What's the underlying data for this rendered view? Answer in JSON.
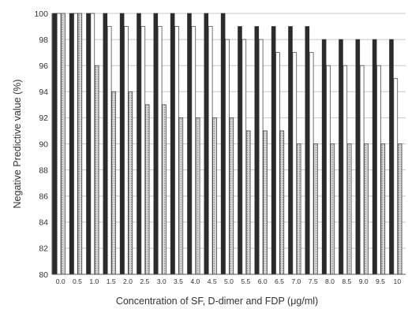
{
  "chart_data": {
    "type": "bar",
    "title": "",
    "xlabel": "Concentration of SF, D-dimer and FDP (μg/ml)",
    "ylabel": "Negative Predictive value (%)",
    "ylim": [
      80,
      100
    ],
    "yticks": [
      "80",
      "82",
      "84",
      "86",
      "88",
      "90",
      "92",
      "94",
      "96",
      "98",
      "100"
    ],
    "grid": true,
    "legend": "none",
    "categories": [
      "0.0",
      "0.5",
      "1.0",
      "1.5",
      "2.0",
      "2.5",
      "3.0",
      "3.5",
      "4.0",
      "4.5",
      "5.0",
      "5.5",
      "6.0",
      "6.5",
      "7.0",
      "7.5",
      "8.0",
      "8.5",
      "9.0",
      "9.5",
      "10"
    ],
    "series": [
      {
        "color": "#2b2b2b",
        "values": [
          100,
          100,
          100,
          100,
          100,
          100,
          100,
          100,
          100,
          100,
          100,
          99,
          99,
          99,
          99,
          99,
          98,
          98,
          98,
          98,
          98
        ]
      },
      {
        "color": "#ffffff",
        "values": [
          100,
          100,
          100,
          99,
          99,
          99,
          99,
          99,
          99,
          99,
          98,
          98,
          98,
          97,
          97,
          97,
          96,
          96,
          96,
          96,
          95
        ]
      },
      {
        "color": "#c8c8c8",
        "values": [
          100,
          100,
          96,
          94,
          94,
          93,
          93,
          92,
          92,
          92,
          92,
          91,
          91,
          91,
          90,
          90,
          90,
          90,
          90,
          90,
          90
        ]
      }
    ]
  }
}
